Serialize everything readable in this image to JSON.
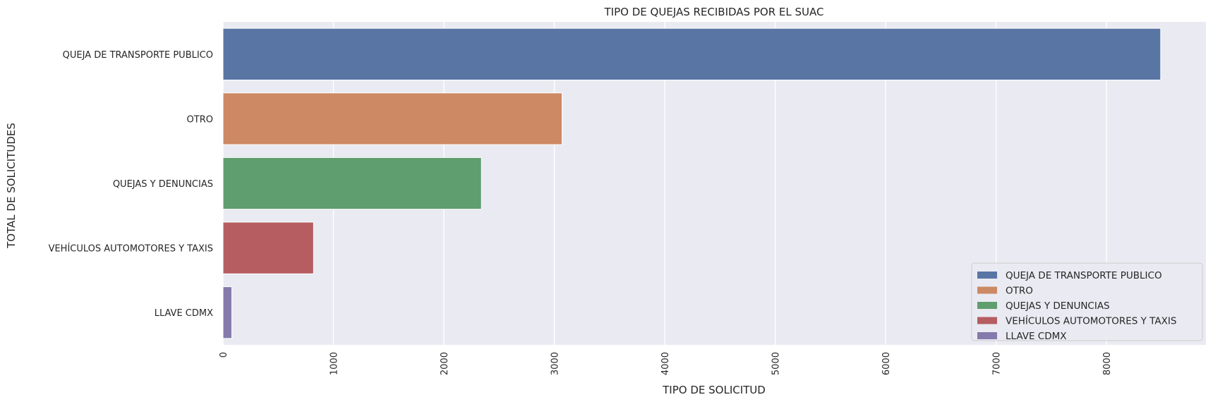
{
  "chart_data": {
    "type": "bar",
    "orientation": "horizontal",
    "title": "TIPO DE QUEJAS RECIBIDAS POR EL SUAC",
    "xlabel": "TIPO DE SOLICITUD",
    "ylabel": "TOTAL DE SOLICITUDES",
    "categories": [
      "QUEJA DE TRANSPORTE PUBLICO",
      "OTRO",
      "QUEJAS Y DENUNCIAS",
      "VEHÍCULOS AUTOMOTORES Y TAXIS",
      "LLAVE CDMX"
    ],
    "values": [
      8490,
      3070,
      2340,
      820,
      80
    ],
    "colors": [
      "#5875a4",
      "#cc8963",
      "#5f9e6e",
      "#b55d60",
      "#857aab"
    ],
    "xlim": [
      0,
      8900
    ],
    "xticks": [
      0,
      1000,
      2000,
      3000,
      4000,
      5000,
      6000,
      7000,
      8000
    ],
    "xtick_labels": [
      "0",
      "1000",
      "2000",
      "3000",
      "4000",
      "5000",
      "6000",
      "7000",
      "8000"
    ],
    "xtick_rotation": 90,
    "grid": true,
    "background": "#eaeaf2",
    "legend": {
      "position": "lower-right",
      "entries": [
        "QUEJA DE TRANSPORTE PUBLICO",
        "OTRO",
        "QUEJAS Y DENUNCIAS",
        "VEHÍCULOS AUTOMOTORES Y TAXIS",
        "LLAVE CDMX"
      ]
    }
  }
}
